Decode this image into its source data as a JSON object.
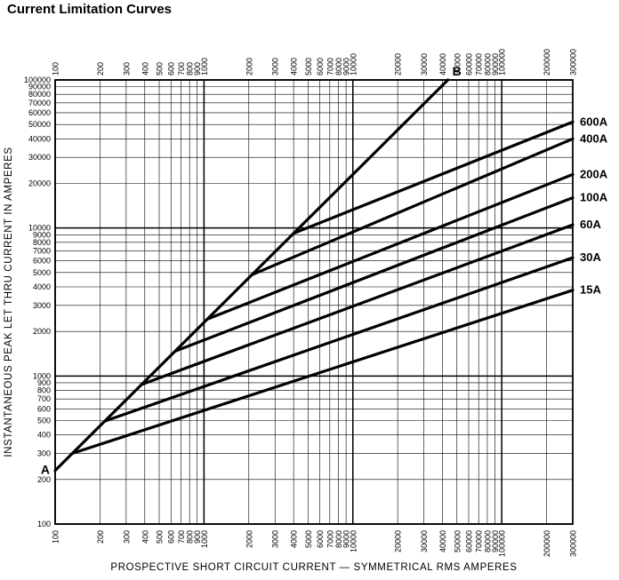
{
  "title": "Current Limitation Curves",
  "chart_data": {
    "type": "line",
    "title": "Current Limitation Curves",
    "background": "#ffffff",
    "line_color": "#000000",
    "grid": true,
    "legend_position": "right-of-plot",
    "x_axis": {
      "label": "PROSPECTIVE SHORT CIRCUIT CURRENT — SYMMETRICAL RMS AMPERES",
      "scale": "log",
      "range": [
        100,
        300000
      ],
      "ticks": [
        100,
        200,
        300,
        400,
        500,
        600,
        700,
        800,
        900,
        1000,
        2000,
        3000,
        4000,
        5000,
        6000,
        7000,
        8000,
        9000,
        10000,
        20000,
        30000,
        40000,
        50000,
        60000,
        70000,
        80000,
        90000,
        100000,
        200000,
        300000
      ]
    },
    "y_axis": {
      "label": "INSTANTANEOUS PEAK LET THRU CURRENT IN AMPERES",
      "scale": "log",
      "range": [
        100,
        100000
      ],
      "ticks": [
        100,
        200,
        300,
        400,
        500,
        600,
        700,
        800,
        900,
        1000,
        2000,
        3000,
        4000,
        5000,
        6000,
        7000,
        8000,
        9000,
        10000,
        20000,
        30000,
        40000,
        50000,
        60000,
        70000,
        80000,
        90000,
        100000
      ]
    },
    "series": [
      {
        "name": "asymmetrical-peak-reference-line",
        "label": "",
        "endpoint_labels": {
          "start": "A",
          "end": "B"
        },
        "points": [
          [
            100,
            230
          ],
          [
            43478,
            100000
          ]
        ]
      },
      {
        "name": "fuse-600A",
        "label": "600A",
        "points": [
          [
            4000,
            9200
          ],
          [
            300000,
            52000
          ]
        ]
      },
      {
        "name": "fuse-400A",
        "label": "400A",
        "points": [
          [
            2100,
            4830
          ],
          [
            300000,
            40000
          ]
        ]
      },
      {
        "name": "fuse-200A",
        "label": "200A",
        "points": [
          [
            1050,
            2420
          ],
          [
            300000,
            23000
          ]
        ]
      },
      {
        "name": "fuse-100A",
        "label": "100A",
        "points": [
          [
            640,
            1470
          ],
          [
            300000,
            16000
          ]
        ]
      },
      {
        "name": "fuse-60A",
        "label": "60A",
        "points": [
          [
            380,
            875
          ],
          [
            300000,
            10500
          ]
        ]
      },
      {
        "name": "fuse-30A",
        "label": "30A",
        "points": [
          [
            215,
            495
          ],
          [
            300000,
            6300
          ]
        ]
      },
      {
        "name": "fuse-15A",
        "label": "15A",
        "points": [
          [
            130,
            300
          ],
          [
            300000,
            3800
          ]
        ]
      }
    ]
  }
}
